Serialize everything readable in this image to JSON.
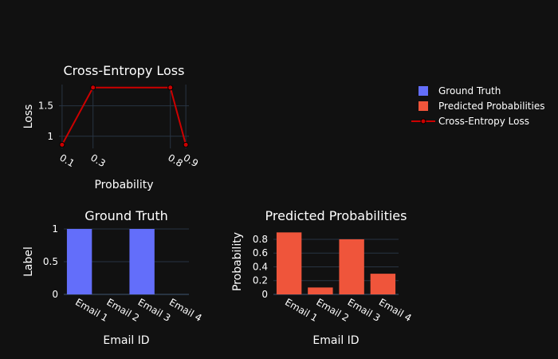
{
  "colors": {
    "background": "#111111",
    "grid": "#283442",
    "ground_truth": "#636efa",
    "predicted": "#ef553b",
    "loss": "#cc0000",
    "text": "#ffffff"
  },
  "legend": {
    "items": [
      {
        "label": "Ground Truth",
        "symbol": "square",
        "color": "#636efa"
      },
      {
        "label": "Predicted Probabilities",
        "symbol": "square",
        "color": "#ef553b"
      },
      {
        "label": "Cross-Entropy Loss",
        "symbol": "line-marker",
        "color": "#cc0000"
      }
    ]
  },
  "chart_data": [
    {
      "type": "line",
      "title": "Cross-Entropy Loss",
      "xlabel": "Probability",
      "ylabel": "Loss",
      "x": [
        0.1,
        0.3,
        0.8,
        0.9
      ],
      "x_tick_labels": [
        "0.1",
        "0.3",
        "0.8",
        "0.9"
      ],
      "series": [
        {
          "name": "Cross-Entropy Loss",
          "values": [
            0.86,
            1.8,
            1.8,
            0.86
          ]
        }
      ],
      "yticks": [
        1,
        1.5
      ],
      "y_tick_labels": [
        "1",
        "1.5"
      ],
      "ylim": [
        0.8,
        1.85
      ],
      "xlim": [
        0.08,
        0.92
      ],
      "grid": true
    },
    {
      "type": "bar",
      "title": "Ground Truth",
      "xlabel": "Email ID",
      "ylabel": "Label",
      "categories": [
        "Email 1",
        "Email 2",
        "Email 3",
        "Email 4"
      ],
      "values": [
        1,
        0,
        1,
        0
      ],
      "yticks": [
        0,
        0.5,
        1
      ],
      "y_tick_labels": [
        "0",
        "0.5",
        "1"
      ],
      "ylim": [
        0,
        1
      ],
      "grid": true
    },
    {
      "type": "bar",
      "title": "Predicted Probabilities",
      "xlabel": "Email ID",
      "ylabel": "Probability",
      "categories": [
        "Email 1",
        "Email 2",
        "Email 3",
        "Email 4"
      ],
      "values": [
        0.9,
        0.1,
        0.8,
        0.3
      ],
      "yticks": [
        0,
        0.2,
        0.4,
        0.6,
        0.8
      ],
      "y_tick_labels": [
        "0",
        "0.2",
        "0.4",
        "0.6",
        "0.8"
      ],
      "ylim": [
        0,
        0.95
      ],
      "grid": true
    }
  ]
}
